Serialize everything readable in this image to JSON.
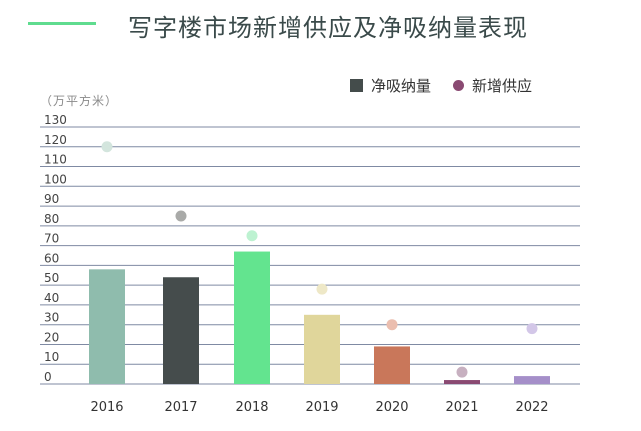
{
  "header": {
    "title": "写字楼市场新增供应及净吸纳量表现",
    "accent": "#5fdc8f"
  },
  "legend": {
    "net_absorption_label": "净吸纳量",
    "net_absorption_color": "#444c4b",
    "new_supply_label": "新增供应",
    "new_supply_color": "#8a4a72"
  },
  "axis": {
    "unit_label": "（万平方米）"
  },
  "chart_data": {
    "type": "bar",
    "categories": [
      "2016",
      "2017",
      "2018",
      "2019",
      "2020",
      "2021",
      "2022"
    ],
    "series": [
      {
        "name": "净吸纳量",
        "kind": "bar",
        "values": [
          58,
          54,
          67,
          35,
          19,
          2,
          4
        ],
        "colors": [
          "#8fbcad",
          "#454c4c",
          "#63e48f",
          "#e0d69b",
          "#c9775a",
          "#8a4a72",
          "#a58fc9"
        ]
      },
      {
        "name": "新增供应",
        "kind": "dot",
        "values": [
          120,
          85,
          75,
          48,
          30,
          6,
          28
        ],
        "colors": [
          "#d3e5dd",
          "#a9aaa8",
          "#bdf2d1",
          "#eee8c7",
          "#ebbeaf",
          "#c7b0c0",
          "#d3c7e8"
        ]
      }
    ],
    "ylim": [
      0,
      130
    ],
    "yticks": [
      0,
      10,
      20,
      30,
      40,
      50,
      60,
      70,
      80,
      90,
      100,
      110,
      120,
      130
    ],
    "grid": true,
    "legend_position": "top-right"
  }
}
